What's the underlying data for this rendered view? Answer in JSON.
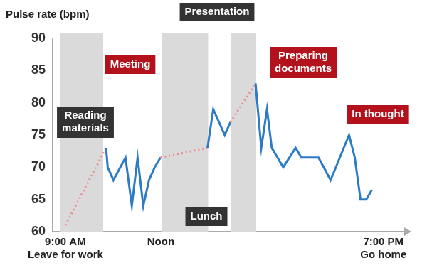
{
  "chart_data": {
    "type": "line",
    "title": "Pulse rate (bpm)",
    "x": [
      9.0,
      10.28,
      10.33,
      10.51,
      10.89,
      11.09,
      11.27,
      11.45,
      11.63,
      11.81,
      11.99,
      13.47,
      13.65,
      13.83,
      14.01,
      14.19,
      14.98,
      15.16,
      15.34,
      15.49,
      15.67,
      15.85,
      16.24,
      16.42,
      16.6,
      16.78,
      16.96,
      17.34,
      17.92,
      18.1,
      18.28,
      18.46,
      18.64
    ],
    "values": [
      61,
      73,
      70,
      68,
      71.5,
      64,
      71.5,
      64,
      68,
      70,
      71.5,
      73,
      79,
      77,
      75,
      77,
      83,
      73,
      79,
      73,
      71.5,
      70,
      73,
      71.5,
      71.5,
      71.5,
      71.5,
      68,
      75,
      71.5,
      65,
      65,
      66.5
    ],
    "color": "#2b7bc6",
    "line_style": "solid",
    "marker": "none",
    "xlim": [
      8.6,
      19.7
    ],
    "xticks": [
      {
        "value": 9,
        "label": [
          "9:00 AM",
          "Leave for work"
        ]
      },
      {
        "value": 12,
        "label": "Noon"
      },
      {
        "value": 19,
        "label": [
          "7:00 PM",
          "Go home"
        ]
      }
    ],
    "ylim": [
      60,
      90
    ],
    "yticks": [
      60,
      65,
      70,
      75,
      80,
      85,
      90
    ],
    "grid": false,
    "shaded_periods": [
      {
        "start": 8.84,
        "end": 10.19
      },
      {
        "start": 12.03,
        "end": 13.49
      },
      {
        "start": 14.21,
        "end": 15.0
      }
    ],
    "annotations": [
      "Reading materials",
      "Meeting",
      "Presentation",
      "Lunch",
      "Preparing documents",
      "In thought"
    ]
  }
}
